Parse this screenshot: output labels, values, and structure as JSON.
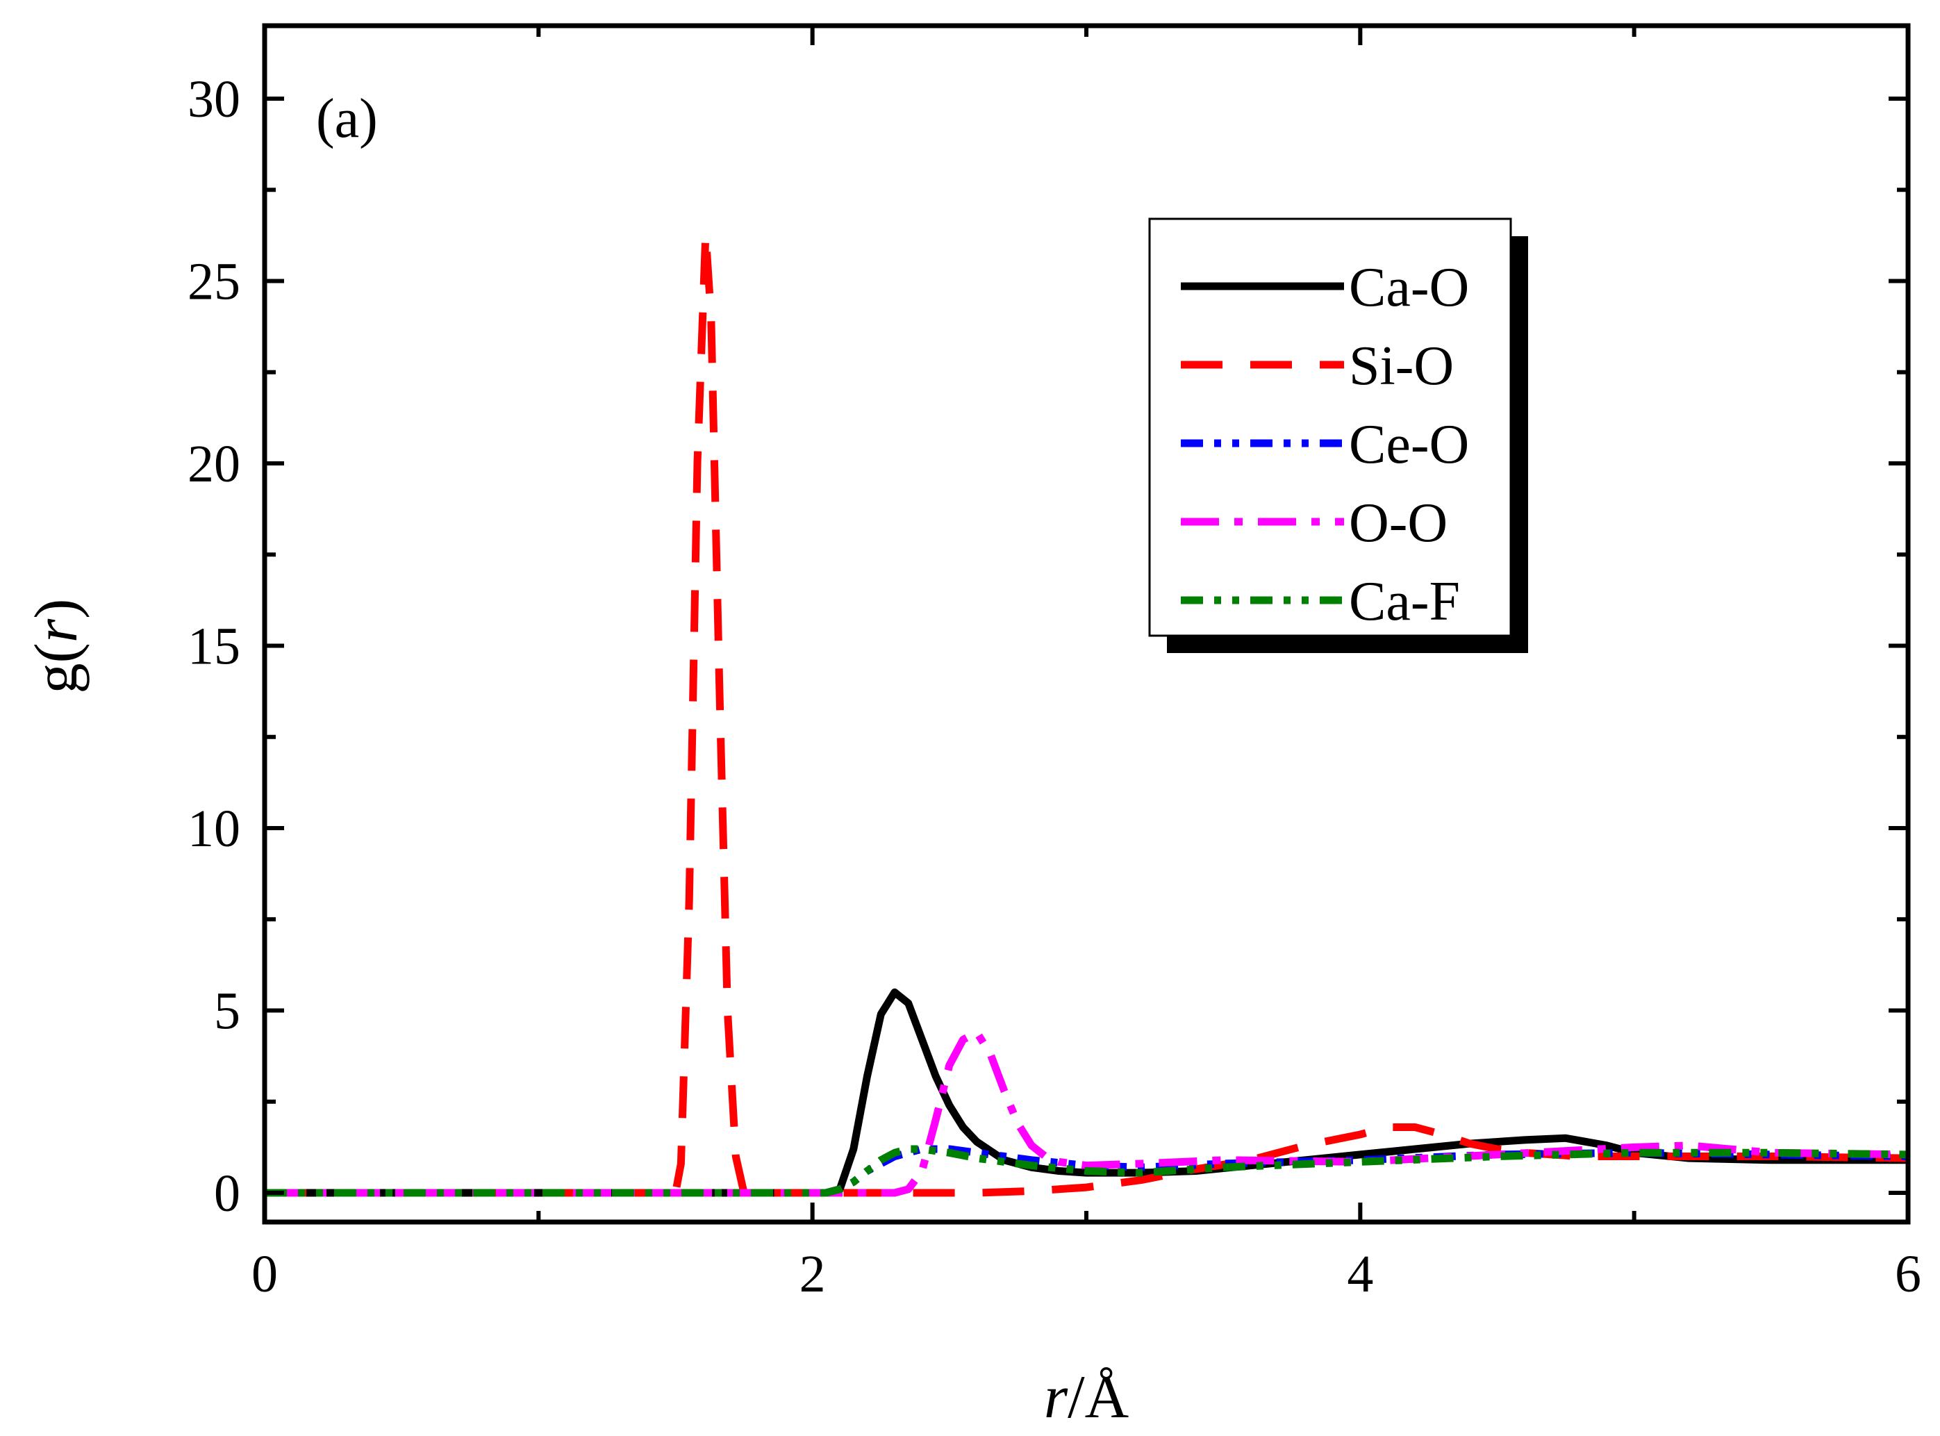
{
  "chart_data": {
    "type": "line",
    "panel_label": "(a)",
    "xlabel": {
      "var": "r",
      "unit": "/Å"
    },
    "ylabel": {
      "prefix": "g(",
      "var": "r",
      "suffix": ")"
    },
    "xlim": [
      0,
      6
    ],
    "ylim": [
      -0.8,
      32
    ],
    "xticks": [
      0,
      2,
      4,
      6
    ],
    "xminor": [
      1,
      3,
      5
    ],
    "yticks": [
      0,
      5,
      10,
      15,
      20,
      25,
      30
    ],
    "legend_position": "top-right",
    "series": [
      {
        "name": "Ca-O",
        "color": "#000000",
        "dash": "solid",
        "x": [
          0,
          2.0,
          2.05,
          2.1,
          2.15,
          2.2,
          2.25,
          2.3,
          2.35,
          2.4,
          2.45,
          2.5,
          2.55,
          2.6,
          2.7,
          2.8,
          2.9,
          3.0,
          3.2,
          3.4,
          3.6,
          3.8,
          4.0,
          4.2,
          4.4,
          4.6,
          4.75,
          4.9,
          5.0,
          5.2,
          5.5,
          6.0
        ],
        "y": [
          0,
          0,
          0,
          0.1,
          1.2,
          3.2,
          4.9,
          5.5,
          5.2,
          4.2,
          3.2,
          2.4,
          1.8,
          1.4,
          0.9,
          0.7,
          0.6,
          0.55,
          0.55,
          0.6,
          0.75,
          0.9,
          1.05,
          1.2,
          1.35,
          1.45,
          1.5,
          1.3,
          1.1,
          0.95,
          0.9,
          0.9
        ]
      },
      {
        "name": "Si-O",
        "color": "#ff0000",
        "dash": "long-dash",
        "x": [
          0,
          1.5,
          1.52,
          1.55,
          1.58,
          1.61,
          1.63,
          1.66,
          1.69,
          1.72,
          1.75,
          1.8,
          2.0,
          2.2,
          2.4,
          2.6,
          2.8,
          3.0,
          3.2,
          3.4,
          3.6,
          3.8,
          4.0,
          4.1,
          4.2,
          4.3,
          4.4,
          4.5,
          4.6,
          4.8,
          5.0,
          5.5,
          6.0
        ],
        "y": [
          0,
          0,
          0.8,
          8,
          20,
          26.3,
          24,
          14,
          5,
          1,
          0,
          0,
          0,
          0,
          0,
          0,
          0.05,
          0.15,
          0.35,
          0.65,
          0.9,
          1.3,
          1.6,
          1.8,
          1.8,
          1.6,
          1.35,
          1.2,
          1.1,
          1.0,
          1.0,
          1.0,
          0.95
        ]
      },
      {
        "name": "Ce-O",
        "color": "#0000ff",
        "dash": "dash-dot-dot",
        "x": [
          0,
          2.05,
          2.1,
          2.15,
          2.2,
          2.3,
          2.4,
          2.5,
          2.6,
          2.7,
          2.8,
          3.0,
          3.2,
          3.5,
          4.0,
          4.5,
          5.0,
          5.5,
          6.0
        ],
        "y": [
          0,
          0,
          0.1,
          0.3,
          0.6,
          1.0,
          1.2,
          1.2,
          1.1,
          1.0,
          0.9,
          0.75,
          0.7,
          0.8,
          0.9,
          1.05,
          1.1,
          1.05,
          1.0
        ]
      },
      {
        "name": "O-O",
        "color": "#ff00ff",
        "dash": "dash-dot",
        "x": [
          0,
          2.3,
          2.35,
          2.4,
          2.45,
          2.5,
          2.55,
          2.6,
          2.65,
          2.7,
          2.75,
          2.8,
          2.85,
          2.9,
          3.0,
          3.2,
          3.5,
          4.0,
          4.5,
          5.0,
          5.2,
          5.5,
          6.0
        ],
        "y": [
          0,
          0,
          0.1,
          0.6,
          2.0,
          3.5,
          4.2,
          4.4,
          3.8,
          2.8,
          1.9,
          1.3,
          1.0,
          0.85,
          0.75,
          0.8,
          0.9,
          0.85,
          1.05,
          1.25,
          1.3,
          1.1,
          1.05
        ]
      },
      {
        "name": "Ca-F",
        "color": "#008000",
        "dash": "dash-dot-dot",
        "x": [
          0,
          2.05,
          2.1,
          2.15,
          2.2,
          2.25,
          2.3,
          2.35,
          2.4,
          2.5,
          2.6,
          2.7,
          2.8,
          3.0,
          3.2,
          3.5,
          4.0,
          4.5,
          5.0,
          5.5,
          6.0
        ],
        "y": [
          0,
          0,
          0.1,
          0.3,
          0.6,
          0.9,
          1.1,
          1.2,
          1.2,
          1.1,
          0.95,
          0.85,
          0.75,
          0.6,
          0.55,
          0.7,
          0.85,
          1.0,
          1.1,
          1.1,
          1.05
        ]
      }
    ]
  }
}
